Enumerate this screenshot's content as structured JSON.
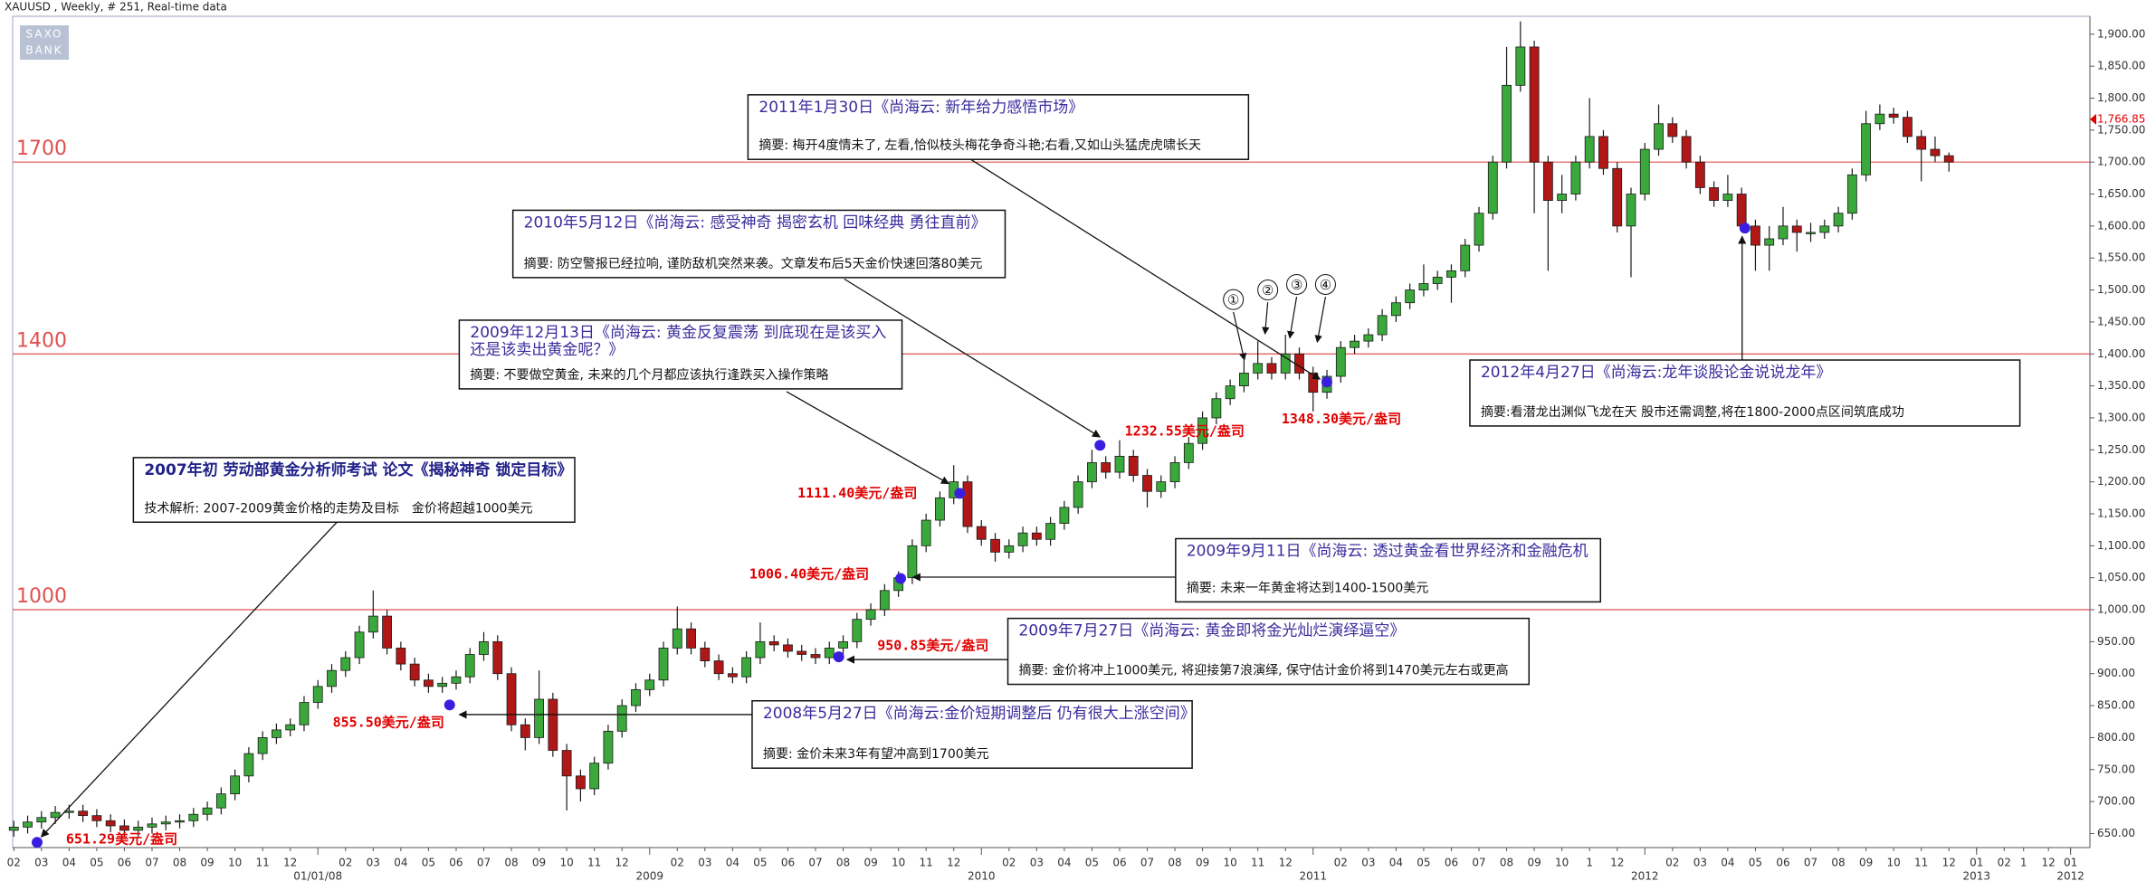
{
  "chart_data": {
    "type": "candlestick",
    "title": "XAUUSD , Weekly, # 251, Real-time data",
    "logo": [
      "SAXO",
      "BANK"
    ],
    "x": [
      0,
      0.5,
      1,
      1.5,
      2,
      2.5,
      3,
      3.5,
      4,
      4.5,
      5,
      5.5,
      6,
      6.5,
      7,
      7.5,
      8,
      8.5,
      9,
      9.5,
      10,
      10.5,
      11,
      11.5,
      12,
      12.5,
      13,
      13.5,
      14,
      14.5,
      15,
      15.5,
      16,
      16.5,
      17,
      17.5,
      18,
      18.5,
      19,
      19.5,
      20,
      20.5,
      21,
      21.5,
      22,
      22.5,
      23,
      23.5,
      24,
      24.5,
      25,
      25.5,
      26,
      26.5,
      27,
      27.5,
      28,
      28.5,
      29,
      29.5,
      30,
      30.5,
      31,
      31.5,
      32,
      32.5,
      33,
      33.5,
      34,
      34.5,
      35,
      35.5,
      36,
      36.5,
      37,
      37.5,
      38,
      38.5,
      39,
      39.5,
      40,
      40.5,
      41,
      41.5,
      42,
      42.5,
      43,
      43.5,
      44,
      44.5,
      45,
      45.5,
      46,
      46.5,
      47,
      47.5,
      48,
      48.5,
      49,
      49.5,
      50,
      50.5,
      51,
      51.5,
      52,
      52.5,
      53,
      53.5,
      54,
      54.5,
      55,
      55.5,
      56,
      56.5,
      57,
      57.5,
      58,
      58.5,
      59,
      59.5,
      60,
      60.5,
      61,
      61.5,
      62,
      62.5,
      63,
      63.5,
      64,
      64.5,
      65,
      65.5,
      66,
      66.5,
      67,
      67.5,
      68,
      68.5,
      69,
      69.5,
      70
    ],
    "open": [
      655,
      660,
      668,
      675,
      683,
      685,
      678,
      670,
      662,
      655,
      660,
      665,
      668,
      670,
      680,
      690,
      712,
      740,
      775,
      800,
      812,
      820,
      855,
      880,
      905,
      925,
      965,
      990,
      940,
      915,
      890,
      880,
      885,
      895,
      930,
      950,
      900,
      820,
      800,
      860,
      780,
      740,
      720,
      760,
      810,
      850,
      875,
      890,
      940,
      970,
      940,
      920,
      900,
      895,
      925,
      950,
      945,
      935,
      930,
      925,
      940,
      950,
      985,
      1000,
      1030,
      1050,
      1100,
      1140,
      1175,
      1200,
      1130,
      1110,
      1090,
      1100,
      1120,
      1110,
      1135,
      1160,
      1200,
      1230,
      1215,
      1240,
      1210,
      1185,
      1200,
      1230,
      1260,
      1300,
      1330,
      1350,
      1370,
      1385,
      1370,
      1400,
      1370,
      1340,
      1365,
      1410,
      1420,
      1430,
      1460,
      1480,
      1500,
      1510,
      1520,
      1530,
      1570,
      1620,
      1700,
      1820,
      1880,
      1700,
      1640,
      1650,
      1700,
      1740,
      1690,
      1600,
      1650,
      1720,
      1760,
      1740,
      1700,
      1660,
      1640,
      1650,
      1600,
      1570,
      1580,
      1600,
      1590,
      1590,
      1600,
      1620,
      1680,
      1760,
      1775,
      1770,
      1740,
      1720,
      1710
    ],
    "high": [
      670,
      678,
      685,
      693,
      695,
      695,
      688,
      680,
      672,
      670,
      675,
      678,
      680,
      690,
      700,
      722,
      750,
      785,
      810,
      822,
      830,
      865,
      890,
      915,
      935,
      975,
      1030,
      1000,
      950,
      925,
      900,
      895,
      905,
      940,
      965,
      960,
      910,
      830,
      905,
      870,
      790,
      750,
      770,
      820,
      860,
      885,
      900,
      950,
      1005,
      980,
      950,
      930,
      910,
      935,
      980,
      960,
      955,
      945,
      940,
      950,
      960,
      995,
      1010,
      1040,
      1060,
      1110,
      1150,
      1185,
      1226,
      1210,
      1140,
      1120,
      1110,
      1130,
      1130,
      1145,
      1170,
      1210,
      1250,
      1240,
      1265,
      1250,
      1220,
      1210,
      1240,
      1270,
      1310,
      1340,
      1360,
      1390,
      1420,
      1395,
      1430,
      1410,
      1380,
      1375,
      1420,
      1430,
      1440,
      1470,
      1490,
      1510,
      1540,
      1530,
      1540,
      1580,
      1630,
      1710,
      1880,
      1920,
      1890,
      1710,
      1680,
      1710,
      1800,
      1750,
      1700,
      1660,
      1730,
      1790,
      1770,
      1750,
      1710,
      1670,
      1680,
      1660,
      1610,
      1600,
      1630,
      1610,
      1605,
      1610,
      1630,
      1690,
      1780,
      1790,
      1785,
      1780,
      1750,
      1740,
      1715
    ],
    "low": [
      645,
      650,
      658,
      665,
      673,
      668,
      660,
      652,
      645,
      645,
      650,
      655,
      658,
      660,
      670,
      680,
      702,
      730,
      765,
      790,
      802,
      810,
      845,
      870,
      895,
      915,
      955,
      930,
      905,
      880,
      870,
      870,
      875,
      885,
      920,
      890,
      810,
      780,
      790,
      770,
      686,
      700,
      710,
      750,
      800,
      840,
      865,
      880,
      930,
      930,
      910,
      890,
      885,
      885,
      915,
      935,
      925,
      920,
      915,
      915,
      930,
      940,
      975,
      990,
      1020,
      1040,
      1090,
      1130,
      1165,
      1120,
      1100,
      1075,
      1080,
      1090,
      1100,
      1100,
      1125,
      1150,
      1190,
      1205,
      1205,
      1200,
      1160,
      1175,
      1190,
      1220,
      1250,
      1290,
      1320,
      1340,
      1360,
      1360,
      1360,
      1360,
      1310,
      1330,
      1355,
      1400,
      1410,
      1420,
      1450,
      1470,
      1490,
      1500,
      1480,
      1520,
      1560,
      1610,
      1690,
      1810,
      1620,
      1530,
      1620,
      1640,
      1690,
      1680,
      1590,
      1520,
      1640,
      1710,
      1730,
      1690,
      1650,
      1630,
      1630,
      1590,
      1530,
      1530,
      1570,
      1560,
      1575,
      1580,
      1590,
      1610,
      1670,
      1750,
      1760,
      1730,
      1670,
      1700,
      1685
    ],
    "close": [
      660,
      668,
      675,
      683,
      685,
      678,
      670,
      662,
      655,
      660,
      665,
      668,
      670,
      680,
      690,
      712,
      740,
      775,
      800,
      812,
      820,
      855,
      880,
      905,
      925,
      965,
      990,
      940,
      915,
      890,
      880,
      885,
      895,
      930,
      950,
      900,
      820,
      800,
      860,
      780,
      740,
      720,
      760,
      810,
      850,
      875,
      890,
      940,
      970,
      940,
      920,
      900,
      895,
      925,
      950,
      945,
      935,
      930,
      925,
      940,
      950,
      985,
      1000,
      1030,
      1050,
      1100,
      1140,
      1175,
      1200,
      1130,
      1110,
      1090,
      1100,
      1120,
      1110,
      1135,
      1160,
      1200,
      1230,
      1215,
      1240,
      1210,
      1185,
      1200,
      1230,
      1260,
      1300,
      1330,
      1350,
      1370,
      1385,
      1370,
      1400,
      1370,
      1340,
      1365,
      1410,
      1420,
      1430,
      1460,
      1480,
      1500,
      1510,
      1520,
      1530,
      1570,
      1620,
      1700,
      1820,
      1880,
      1700,
      1640,
      1650,
      1700,
      1740,
      1690,
      1600,
      1650,
      1720,
      1760,
      1740,
      1700,
      1660,
      1640,
      1650,
      1600,
      1570,
      1580,
      1600,
      1590,
      1590,
      1600,
      1620,
      1680,
      1760,
      1775,
      1770,
      1740,
      1720,
      1710,
      1700
    ],
    "colors": {
      "up": "#3aa83a",
      "down": "#b01818",
      "wick": "#1a1a1a",
      "level": "#e05050",
      "dot": "#3a1ee0"
    },
    "xlim": [
      -0.5,
      75.1
    ],
    "ylim": [
      628,
      1928
    ],
    "yticks": [
      {
        "value": 650,
        "label": "650.00"
      },
      {
        "value": 700,
        "label": "700.00"
      },
      {
        "value": 750,
        "label": "750.00"
      },
      {
        "value": 800,
        "label": "800.00"
      },
      {
        "value": 850,
        "label": "850.00"
      },
      {
        "value": 900,
        "label": "900.00"
      },
      {
        "value": 950,
        "label": "950.00"
      },
      {
        "value": 1000,
        "label": "1,000.00"
      },
      {
        "value": 1050,
        "label": "1,050.00"
      },
      {
        "value": 1100,
        "label": "1,100.00"
      },
      {
        "value": 1150,
        "label": "1,150.00"
      },
      {
        "value": 1200,
        "label": "1,200.00"
      },
      {
        "value": 1250,
        "label": "1,250.00"
      },
      {
        "value": 1300,
        "label": "1,300.00"
      },
      {
        "value": 1350,
        "label": "1,350.00"
      },
      {
        "value": 1400,
        "label": "1,400.00"
      },
      {
        "value": 1450,
        "label": "1,450.00"
      },
      {
        "value": 1500,
        "label": "1,500.00"
      },
      {
        "value": 1550,
        "label": "1,550.00"
      },
      {
        "value": 1600,
        "label": "1,600.00"
      },
      {
        "value": 1650,
        "label": "1,650.00"
      },
      {
        "value": 1700,
        "label": "1,700.00"
      },
      {
        "value": 1750,
        "label": "1,750.00"
      },
      {
        "value": 1800,
        "label": "1,800.00"
      },
      {
        "value": 1850,
        "label": "1,850.00"
      },
      {
        "value": 1900,
        "label": "1,900.00"
      }
    ],
    "last_price": {
      "value": 1766.85,
      "label": "1,766.85"
    },
    "levels": [
      1700,
      1400,
      1000
    ],
    "xticks": [
      {
        "value": 0,
        "label": "02"
      },
      {
        "value": 1,
        "label": "03"
      },
      {
        "value": 2,
        "label": "04"
      },
      {
        "value": 3,
        "label": "05"
      },
      {
        "value": 4,
        "label": "06"
      },
      {
        "value": 5,
        "label": "07"
      },
      {
        "value": 6,
        "label": "08"
      },
      {
        "value": 7,
        "label": "09"
      },
      {
        "value": 8,
        "label": "10"
      },
      {
        "value": 9,
        "label": "11"
      },
      {
        "value": 10,
        "label": "12"
      },
      {
        "value": 12,
        "label": "02"
      },
      {
        "value": 13,
        "label": "03"
      },
      {
        "value": 14,
        "label": "04"
      },
      {
        "value": 15,
        "label": "05"
      },
      {
        "value": 16,
        "label": "06"
      },
      {
        "value": 17,
        "label": "07"
      },
      {
        "value": 18,
        "label": "08"
      },
      {
        "value": 19,
        "label": "09"
      },
      {
        "value": 20,
        "label": "10"
      },
      {
        "value": 21,
        "label": "11"
      },
      {
        "value": 22,
        "label": "12"
      },
      {
        "value": 24,
        "label": "02"
      },
      {
        "value": 25,
        "label": "03"
      },
      {
        "value": 26,
        "label": "04"
      },
      {
        "value": 27,
        "label": "05"
      },
      {
        "value": 28,
        "label": "06"
      },
      {
        "value": 29,
        "label": "07"
      },
      {
        "value": 30,
        "label": "08"
      },
      {
        "value": 31,
        "label": "09"
      },
      {
        "value": 32,
        "label": "10"
      },
      {
        "value": 33,
        "label": "11"
      },
      {
        "value": 34,
        "label": "12"
      },
      {
        "value": 36,
        "label": "02"
      },
      {
        "value": 37,
        "label": "03"
      },
      {
        "value": 38,
        "label": "04"
      },
      {
        "value": 39,
        "label": "05"
      },
      {
        "value": 40,
        "label": "06"
      },
      {
        "value": 41,
        "label": "07"
      },
      {
        "value": 42,
        "label": "08"
      },
      {
        "value": 43,
        "label": "09"
      },
      {
        "value": 44,
        "label": "10"
      },
      {
        "value": 45,
        "label": "11"
      },
      {
        "value": 46,
        "label": "12"
      },
      {
        "value": 48,
        "label": "02"
      },
      {
        "value": 49,
        "label": "03"
      },
      {
        "value": 50,
        "label": "04"
      },
      {
        "value": 51,
        "label": "05"
      },
      {
        "value": 52,
        "label": "06"
      },
      {
        "value": 53,
        "label": "07"
      },
      {
        "value": 54,
        "label": "08"
      },
      {
        "value": 55,
        "label": "09"
      },
      {
        "value": 56,
        "label": "10"
      },
      {
        "value": 57,
        "label": "1"
      },
      {
        "value": 58,
        "label": "12"
      },
      {
        "value": 60,
        "label": "02"
      },
      {
        "value": 61,
        "label": "03"
      },
      {
        "value": 62,
        "label": "04"
      },
      {
        "value": 63,
        "label": "05"
      },
      {
        "value": 64,
        "label": "06"
      },
      {
        "value": 65,
        "label": "07"
      },
      {
        "value": 66,
        "label": "08"
      },
      {
        "value": 67,
        "label": "09"
      },
      {
        "value": 68,
        "label": "10"
      },
      {
        "value": 69,
        "label": "11"
      },
      {
        "value": 70,
        "label": "12"
      },
      {
        "value": 71,
        "label": "01"
      },
      {
        "value": 72,
        "label": "02"
      },
      {
        "value": 72.7,
        "label": "1"
      },
      {
        "value": 73.6,
        "label": "12"
      },
      {
        "value": 74.4,
        "label": "01"
      }
    ],
    "year_ticks": [
      {
        "value": 11,
        "label": "01/01/08"
      },
      {
        "value": 23,
        "label": "2009"
      },
      {
        "value": 35,
        "label": "2010"
      },
      {
        "value": 47,
        "label": "2011"
      },
      {
        "value": 59,
        "label": "2012"
      },
      {
        "value": 71,
        "label": "2013"
      },
      {
        "value": 74.4,
        "label": "2012"
      }
    ],
    "price_labels": [
      "651.29美元/盎司",
      "855.50美元/盎司",
      "950.85美元/盎司",
      "1006.40美元/盎司",
      "1111.40美元/盎司",
      "1232.55美元/盎司",
      "1348.30美元/盎司"
    ],
    "wave_markers": [
      "①",
      "②",
      "③",
      "④"
    ],
    "annotations": [
      {
        "title": [
          "2011年1月30日《尚海云: 新年给力感悟市场》"
        ],
        "text": "摘要: 梅开4度情未了, 左看,恰似枝头梅花争奇斗艳;右看,又如山头猛虎虎啸长天"
      },
      {
        "title": [
          "2010年5月12日《尚海云: 感受神奇 揭密玄机 回味经典 勇往直前》"
        ],
        "text": "摘要: 防空警报已经拉响, 谨防敌机突然来袭。文章发布后5天金价快速回落80美元"
      },
      {
        "title": [
          "2009年12月13日《尚海云: 黄金反复震荡 到底现在是该买入",
          "还是该卖出黄金呢？》"
        ],
        "text": "摘要: 不要做空黄金, 未来的几个月都应该执行逢跌买入操作策略"
      },
      {
        "title": [
          "2007年初 劳动部黄金分析师考试 论文《揭秘神奇 锁定目标》"
        ],
        "text": "技术解析: 2007-2009黄金价格的走势及目标　金价将超越1000美元"
      },
      {
        "title": [
          "2012年4月27日《尚海云:龙年谈股论金说说龙年》"
        ],
        "text": "摘要:看潜龙出渊似飞龙在天 股市还需调整,将在1800-2000点区间筑底成功"
      },
      {
        "title": [
          "2009年9月11日《尚海云: 透过黄金看世界经济和金融危机"
        ],
        "text": "摘要: 未来一年黄金将达到1400-1500美元"
      },
      {
        "title": [
          "2009年7月27日《尚海云: 黄金即将金光灿烂演绎逼空》"
        ],
        "text": "摘要: 金价将冲上1000美元, 将迎接第7浪演绎, 保守估计金价将到1470美元左右或更高"
      },
      {
        "title": [
          "2008年5月27日《尚海云:金价短期调整后 仍有很大上涨空间》"
        ],
        "text": "摘要: 金价未来3年有望冲高到1700美元"
      }
    ]
  }
}
